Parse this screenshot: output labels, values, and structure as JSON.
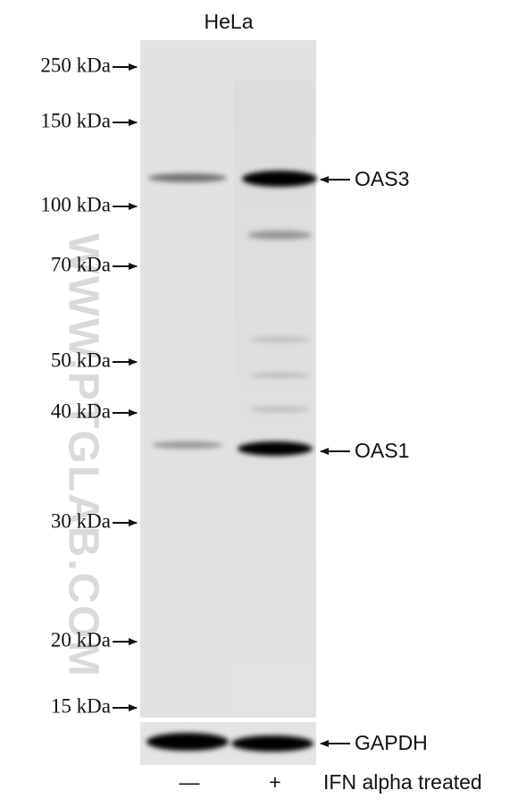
{
  "sample": "HeLa",
  "watermark": "WWW.PTGLAB.COM",
  "markers": [
    "250 kDa",
    "150 kDa",
    "100 kDa",
    "70 kDa",
    "50 kDa",
    "40 kDa",
    "30 kDa",
    "20 kDa",
    "15 kDa"
  ],
  "bands": [
    {
      "label": "OAS3"
    },
    {
      "label": "OAS1"
    },
    {
      "label": "GAPDH"
    }
  ],
  "lanes": [
    "—",
    "+"
  ],
  "treatment": "IFN alpha treated"
}
